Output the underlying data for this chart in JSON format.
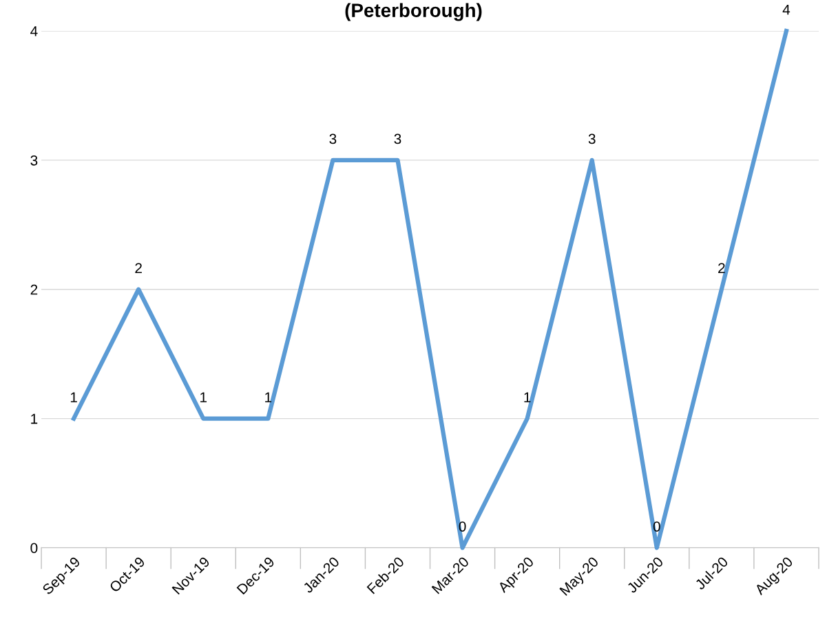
{
  "chart_data": {
    "type": "line",
    "title": "(Peterborough)",
    "categories": [
      "Sep-19",
      "Oct-19",
      "Nov-19",
      "Dec-19",
      "Jan-20",
      "Feb-20",
      "Mar-20",
      "Apr-20",
      "May-20",
      "Jun-20",
      "Jul-20",
      "Aug-20"
    ],
    "series": [
      {
        "color": "#5b9bd5",
        "values": [
          1,
          2,
          1,
          1,
          3,
          3,
          0,
          1,
          3,
          0,
          2,
          4
        ]
      }
    ],
    "ylim": [
      0,
      4
    ],
    "yticks": [
      0,
      1,
      2,
      3,
      4
    ],
    "grid": "y",
    "data_labels": true,
    "marker": "none",
    "line_style": "solid"
  }
}
